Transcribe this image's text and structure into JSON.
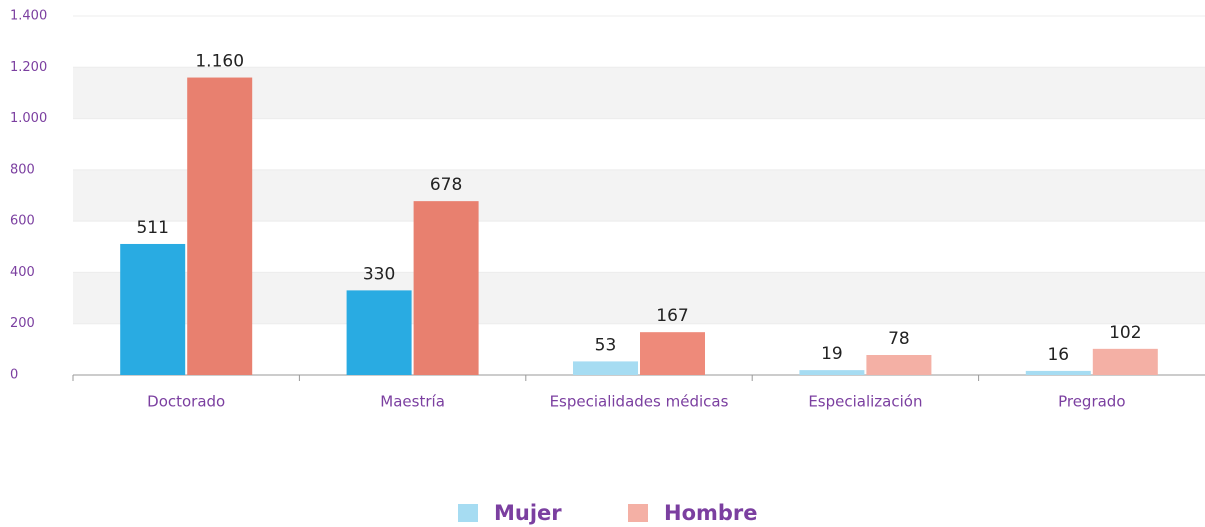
{
  "chart_data": {
    "type": "bar",
    "categories": [
      "Doctorado",
      "Maestría",
      "Especialidades médicas",
      "Especialización",
      "Pregrado"
    ],
    "series": [
      {
        "name": "Mujer",
        "color": "#29abe2",
        "colors": [
          "#29abe2",
          "#29abe2",
          "#a6dcf2",
          "#a6dcf2",
          "#a6dcf2"
        ],
        "values": [
          511,
          330,
          53,
          19,
          16
        ]
      },
      {
        "name": "Hombre",
        "color": "#e8806f",
        "colors": [
          "#e8806f",
          "#e8806f",
          "#ee8a7a",
          "#f4b0a5",
          "#f4b0a5"
        ],
        "values": [
          1160,
          678,
          167,
          78,
          102
        ],
        "value_labels": [
          "1.160",
          "678",
          "167",
          "78",
          "102"
        ]
      }
    ],
    "ylim": [
      0,
      1400
    ],
    "yticks": [
      0,
      200,
      400,
      600,
      800,
      {
        "value": 1000,
        "label": "1.000"
      },
      {
        "value": 1200,
        "label": "1.200"
      },
      {
        "value": 1400,
        "label": "1.400"
      }
    ],
    "grid": true,
    "legend": "bottom"
  }
}
